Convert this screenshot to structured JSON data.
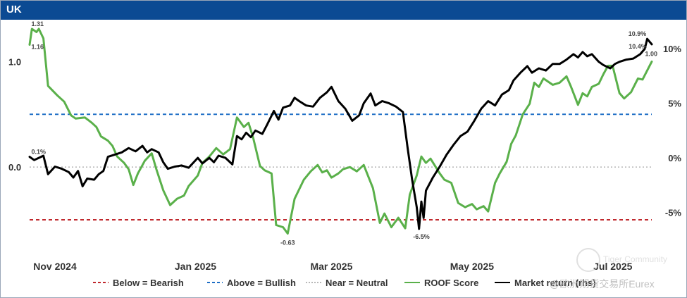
{
  "header": {
    "title": "UK"
  },
  "watermark": {
    "line1": "Tiger Community",
    "line2": "@欧洲期货交易所Eurex"
  },
  "colors": {
    "title_bar": "#0b4a93",
    "roof": "#5ab04a",
    "market": "#000000",
    "bearish": "#c0282d",
    "bullish": "#1f6fc6",
    "neutral": "#b8b8b8"
  },
  "chart_data": {
    "type": "line",
    "title": "UK",
    "x_range": [
      "2024-10-21",
      "2025-07-18"
    ],
    "x_ticks": [
      {
        "date": "2024-11-01",
        "label": "Nov 2024"
      },
      {
        "date": "2025-01-01",
        "label": "Jan 2025"
      },
      {
        "date": "2025-03-01",
        "label": "Mar 2025"
      },
      {
        "date": "2025-05-01",
        "label": "May 2025"
      },
      {
        "date": "2025-07-01",
        "label": "Jul 2025"
      }
    ],
    "y_left": {
      "range": [
        -0.72,
        1.35
      ],
      "ticks": [
        {
          "value": 1.0,
          "label": "1.0"
        },
        {
          "value": 0.0,
          "label": "0.0"
        }
      ]
    },
    "y_right": {
      "range": [
        -7.8,
        12.2
      ],
      "ticks": [
        {
          "value": 10,
          "label": "10%"
        },
        {
          "value": 5,
          "label": "5%"
        },
        {
          "value": 0,
          "label": "0%"
        },
        {
          "value": -5,
          "label": "-5%"
        }
      ]
    },
    "reference_lines": [
      {
        "name": "bearish",
        "value": -0.5
      },
      {
        "name": "bullish",
        "value": 0.5
      },
      {
        "name": "neutral",
        "value": 0.0
      }
    ],
    "legend": [
      {
        "key": "bearish",
        "label": "Below = Bearish",
        "style": "dashed"
      },
      {
        "key": "bullish",
        "label": "Above = Bullish",
        "style": "dashed"
      },
      {
        "key": "neutral",
        "label": "Near = Neutral",
        "style": "dotted"
      },
      {
        "key": "roof",
        "label": "ROOF Score",
        "style": "solid"
      },
      {
        "key": "market",
        "label": "Market return (rhs)",
        "style": "solid"
      }
    ],
    "annotations": [
      {
        "series": "roof",
        "date": "2024-10-23",
        "value": 1.31,
        "label": "1.31"
      },
      {
        "series": "roof",
        "date": "2024-10-23",
        "value": 1.16,
        "label": "1.16"
      },
      {
        "series": "market",
        "date": "2024-10-23",
        "value": 0.1,
        "label": "0.1%"
      },
      {
        "series": "roof",
        "date": "2025-02-10",
        "value": -0.63,
        "label": "-0.63"
      },
      {
        "series": "market",
        "date": "2025-04-09",
        "value": -6.5,
        "label": "-6.5%"
      },
      {
        "series": "market",
        "date": "2025-07-16",
        "value": 10.9,
        "label": "10.9%"
      },
      {
        "series": "market",
        "date": "2025-07-17",
        "value": 10.4,
        "label": "10.4%"
      },
      {
        "series": "roof",
        "date": "2025-07-18",
        "value": 1.0,
        "label": "1.00"
      }
    ],
    "series": [
      {
        "name": "ROOF Score",
        "key": "roof",
        "axis": "left",
        "points": [
          [
            "2024-10-21",
            1.16
          ],
          [
            "2024-10-22",
            1.31
          ],
          [
            "2024-10-24",
            1.28
          ],
          [
            "2024-10-25",
            1.31
          ],
          [
            "2024-10-27",
            1.22
          ],
          [
            "2024-10-29",
            0.77
          ],
          [
            "2024-11-02",
            0.68
          ],
          [
            "2024-11-05",
            0.62
          ],
          [
            "2024-11-08",
            0.49
          ],
          [
            "2024-11-10",
            0.46
          ],
          [
            "2024-11-14",
            0.47
          ],
          [
            "2024-11-17",
            0.42
          ],
          [
            "2024-11-19",
            0.38
          ],
          [
            "2024-11-21",
            0.29
          ],
          [
            "2024-11-24",
            0.25
          ],
          [
            "2024-11-26",
            0.2
          ],
          [
            "2024-11-28",
            0.1
          ],
          [
            "2024-12-01",
            0.04
          ],
          [
            "2024-12-03",
            -0.02
          ],
          [
            "2024-12-05",
            -0.17
          ],
          [
            "2024-12-07",
            -0.06
          ],
          [
            "2024-12-10",
            0.06
          ],
          [
            "2024-12-13",
            0.13
          ],
          [
            "2024-12-15",
            -0.02
          ],
          [
            "2024-12-18",
            -0.22
          ],
          [
            "2024-12-21",
            -0.36
          ],
          [
            "2024-12-24",
            -0.3
          ],
          [
            "2024-12-27",
            -0.27
          ],
          [
            "2024-12-29",
            -0.18
          ],
          [
            "2025-01-02",
            -0.08
          ],
          [
            "2025-01-04",
            0.04
          ],
          [
            "2025-01-07",
            0.1
          ],
          [
            "2025-01-10",
            0.18
          ],
          [
            "2025-01-13",
            0.12
          ],
          [
            "2025-01-16",
            0.17
          ],
          [
            "2025-01-19",
            0.47
          ],
          [
            "2025-01-22",
            0.38
          ],
          [
            "2025-01-24",
            0.42
          ],
          [
            "2025-01-26",
            0.28
          ],
          [
            "2025-01-29",
            0.01
          ],
          [
            "2025-01-31",
            -0.03
          ],
          [
            "2025-02-03",
            -0.06
          ],
          [
            "2025-02-05",
            -0.55
          ],
          [
            "2025-02-08",
            -0.57
          ],
          [
            "2025-02-10",
            -0.63
          ],
          [
            "2025-02-13",
            -0.3
          ],
          [
            "2025-02-17",
            -0.12
          ],
          [
            "2025-02-20",
            -0.04
          ],
          [
            "2025-02-23",
            0.02
          ],
          [
            "2025-02-25",
            -0.05
          ],
          [
            "2025-02-27",
            -0.03
          ],
          [
            "2025-03-01",
            -0.1
          ],
          [
            "2025-03-04",
            -0.06
          ],
          [
            "2025-03-06",
            -0.02
          ],
          [
            "2025-03-09",
            0.0
          ],
          [
            "2025-03-12",
            -0.04
          ],
          [
            "2025-03-15",
            0.02
          ],
          [
            "2025-03-19",
            -0.2
          ],
          [
            "2025-03-22",
            -0.53
          ],
          [
            "2025-03-24",
            -0.44
          ],
          [
            "2025-03-27",
            -0.57
          ],
          [
            "2025-03-30",
            -0.48
          ],
          [
            "2025-04-02",
            -0.58
          ],
          [
            "2025-04-04",
            -0.26
          ],
          [
            "2025-04-07",
            -0.08
          ],
          [
            "2025-04-09",
            0.1
          ],
          [
            "2025-04-11",
            0.04
          ],
          [
            "2025-04-13",
            0.08
          ],
          [
            "2025-04-17",
            -0.06
          ],
          [
            "2025-04-19",
            -0.12
          ],
          [
            "2025-04-22",
            -0.15
          ],
          [
            "2025-04-25",
            -0.34
          ],
          [
            "2025-04-28",
            -0.38
          ],
          [
            "2025-05-01",
            -0.35
          ],
          [
            "2025-05-03",
            -0.4
          ],
          [
            "2025-05-06",
            -0.37
          ],
          [
            "2025-05-08",
            -0.42
          ],
          [
            "2025-05-11",
            -0.15
          ],
          [
            "2025-05-13",
            -0.06
          ],
          [
            "2025-05-16",
            0.05
          ],
          [
            "2025-05-18",
            0.22
          ],
          [
            "2025-05-20",
            0.3
          ],
          [
            "2025-05-23",
            0.5
          ],
          [
            "2025-05-26",
            0.6
          ],
          [
            "2025-05-28",
            0.8
          ],
          [
            "2025-05-30",
            0.76
          ],
          [
            "2025-06-01",
            0.84
          ],
          [
            "2025-06-05",
            0.78
          ],
          [
            "2025-06-08",
            0.8
          ],
          [
            "2025-06-11",
            0.86
          ],
          [
            "2025-06-13",
            0.76
          ],
          [
            "2025-06-16",
            0.59
          ],
          [
            "2025-06-18",
            0.7
          ],
          [
            "2025-06-20",
            0.67
          ],
          [
            "2025-06-22",
            0.76
          ],
          [
            "2025-06-25",
            0.79
          ],
          [
            "2025-06-27",
            0.88
          ],
          [
            "2025-06-29",
            0.96
          ],
          [
            "2025-07-01",
            0.96
          ],
          [
            "2025-07-04",
            0.7
          ],
          [
            "2025-07-06",
            0.65
          ],
          [
            "2025-07-09",
            0.71
          ],
          [
            "2025-07-12",
            0.84
          ],
          [
            "2025-07-14",
            0.83
          ],
          [
            "2025-07-18",
            1.0
          ]
        ]
      },
      {
        "name": "Market return (rhs)",
        "key": "market",
        "axis": "right",
        "points": [
          [
            "2024-10-21",
            0.1
          ],
          [
            "2024-10-23",
            -0.2
          ],
          [
            "2024-10-25",
            0.0
          ],
          [
            "2024-10-27",
            0.2
          ],
          [
            "2024-10-29",
            -1.5
          ],
          [
            "2024-11-01",
            -0.8
          ],
          [
            "2024-11-04",
            -1.0
          ],
          [
            "2024-11-07",
            -1.3
          ],
          [
            "2024-11-09",
            -1.8
          ],
          [
            "2024-11-11",
            -1.2
          ],
          [
            "2024-11-13",
            -2.6
          ],
          [
            "2024-11-15",
            -1.9
          ],
          [
            "2024-11-18",
            -2.0
          ],
          [
            "2024-11-20",
            -1.5
          ],
          [
            "2024-11-22",
            -1.2
          ],
          [
            "2024-11-24",
            0.1
          ],
          [
            "2024-11-27",
            0.3
          ],
          [
            "2024-11-30",
            0.5
          ],
          [
            "2024-12-03",
            0.9
          ],
          [
            "2024-12-06",
            0.6
          ],
          [
            "2024-12-09",
            1.1
          ],
          [
            "2024-12-11",
            0.5
          ],
          [
            "2024-12-13",
            0.8
          ],
          [
            "2024-12-16",
            0.5
          ],
          [
            "2024-12-18",
            -0.4
          ],
          [
            "2024-12-20",
            -1.0
          ],
          [
            "2024-12-23",
            -0.8
          ],
          [
            "2024-12-26",
            -0.7
          ],
          [
            "2024-12-29",
            -0.9
          ],
          [
            "2025-01-02",
            0.0
          ],
          [
            "2025-01-04",
            -0.5
          ],
          [
            "2025-01-07",
            0.0
          ],
          [
            "2025-01-09",
            -0.4
          ],
          [
            "2025-01-11",
            0.2
          ],
          [
            "2025-01-14",
            0.0
          ],
          [
            "2025-01-17",
            -0.6
          ],
          [
            "2025-01-19",
            2.0
          ],
          [
            "2025-01-21",
            1.7
          ],
          [
            "2025-01-23",
            2.3
          ],
          [
            "2025-01-25",
            1.9
          ],
          [
            "2025-01-27",
            2.5
          ],
          [
            "2025-01-30",
            2.2
          ],
          [
            "2025-02-01",
            3.0
          ],
          [
            "2025-02-04",
            4.3
          ],
          [
            "2025-02-06",
            3.5
          ],
          [
            "2025-02-08",
            4.6
          ],
          [
            "2025-02-11",
            4.8
          ],
          [
            "2025-02-13",
            5.5
          ],
          [
            "2025-02-15",
            5.2
          ],
          [
            "2025-02-18",
            4.8
          ],
          [
            "2025-02-21",
            4.7
          ],
          [
            "2025-02-24",
            5.5
          ],
          [
            "2025-02-27",
            6.0
          ],
          [
            "2025-03-01",
            6.5
          ],
          [
            "2025-03-04",
            5.2
          ],
          [
            "2025-03-07",
            4.5
          ],
          [
            "2025-03-10",
            3.4
          ],
          [
            "2025-03-13",
            3.9
          ],
          [
            "2025-03-15",
            5.0
          ],
          [
            "2025-03-18",
            5.9
          ],
          [
            "2025-03-20",
            4.8
          ],
          [
            "2025-03-23",
            5.2
          ],
          [
            "2025-03-26",
            5.0
          ],
          [
            "2025-03-29",
            4.7
          ],
          [
            "2025-04-01",
            4.2
          ],
          [
            "2025-04-03",
            1.0
          ],
          [
            "2025-04-05",
            -2.0
          ],
          [
            "2025-04-07",
            -4.5
          ],
          [
            "2025-04-08",
            -6.5
          ],
          [
            "2025-04-09",
            -4.0
          ],
          [
            "2025-04-10",
            -5.5
          ],
          [
            "2025-04-11",
            -3.0
          ],
          [
            "2025-04-14",
            -1.8
          ],
          [
            "2025-04-17",
            -0.8
          ],
          [
            "2025-04-20",
            0.3
          ],
          [
            "2025-04-23",
            1.2
          ],
          [
            "2025-04-26",
            2.0
          ],
          [
            "2025-04-29",
            2.4
          ],
          [
            "2025-05-02",
            3.4
          ],
          [
            "2025-05-05",
            4.5
          ],
          [
            "2025-05-08",
            5.2
          ],
          [
            "2025-05-11",
            4.8
          ],
          [
            "2025-05-14",
            5.8
          ],
          [
            "2025-05-17",
            6.2
          ],
          [
            "2025-05-19",
            7.1
          ],
          [
            "2025-05-22",
            7.8
          ],
          [
            "2025-05-25",
            8.4
          ],
          [
            "2025-05-27",
            7.8
          ],
          [
            "2025-05-30",
            8.2
          ],
          [
            "2025-06-02",
            8.0
          ],
          [
            "2025-06-05",
            8.6
          ],
          [
            "2025-06-08",
            8.6
          ],
          [
            "2025-06-11",
            9.0
          ],
          [
            "2025-06-14",
            9.5
          ],
          [
            "2025-06-16",
            9.2
          ],
          [
            "2025-06-18",
            9.7
          ],
          [
            "2025-06-20",
            9.3
          ],
          [
            "2025-06-22",
            9.5
          ],
          [
            "2025-06-25",
            8.8
          ],
          [
            "2025-06-27",
            8.5
          ],
          [
            "2025-06-30",
            8.2
          ],
          [
            "2025-07-02",
            8.6
          ],
          [
            "2025-07-04",
            8.8
          ],
          [
            "2025-07-07",
            9.0
          ],
          [
            "2025-07-10",
            9.1
          ],
          [
            "2025-07-13",
            9.5
          ],
          [
            "2025-07-15",
            10.0
          ],
          [
            "2025-07-16",
            10.9
          ],
          [
            "2025-07-18",
            10.4
          ]
        ]
      }
    ]
  }
}
